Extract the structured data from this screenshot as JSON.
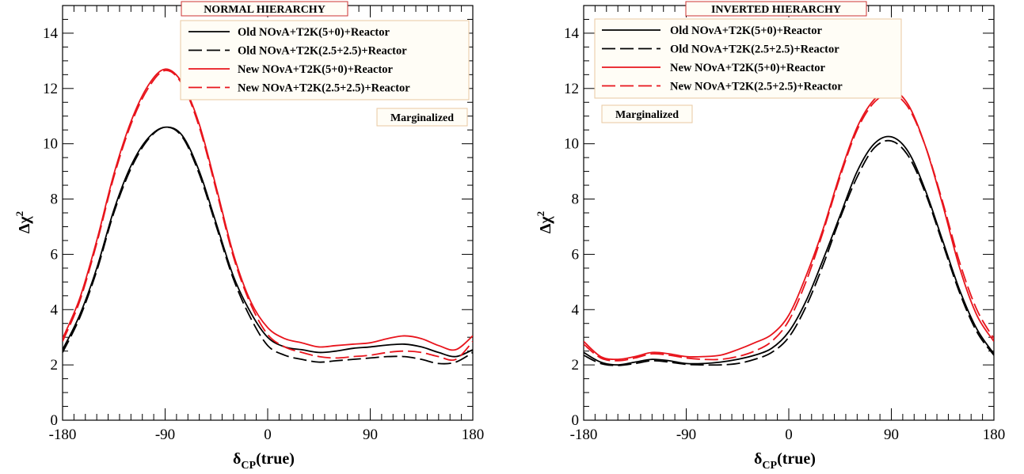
{
  "colors": {
    "old": "#000000",
    "new": "#e8141c",
    "legend_border": "#e8c8a0",
    "title_border": "#cc3333",
    "badge_bg": "#fffdf6"
  },
  "chart_data": [
    {
      "type": "line",
      "title": "NORMAL HIERARCHY",
      "xlabel": "δCP(true)",
      "ylabel": "Δχ2",
      "xlim": [
        -180,
        180
      ],
      "ylim": [
        0,
        15
      ],
      "xticks": [
        "-180",
        "-90",
        "0",
        "90",
        "180"
      ],
      "yticks": [
        "0",
        "2",
        "4",
        "6",
        "8",
        "10",
        "12",
        "14"
      ],
      "annotation": "Marginalized",
      "legend_position": "top-right",
      "x": [
        -180,
        -165,
        -150,
        -135,
        -120,
        -105,
        -90,
        -75,
        -60,
        -45,
        -30,
        -15,
        0,
        15,
        30,
        45,
        60,
        75,
        90,
        105,
        120,
        135,
        150,
        165,
        180
      ],
      "series": [
        {
          "name": "Old NOνA+T2K(5+0)+Reactor",
          "style": "solid",
          "color_key": "old",
          "values": [
            2.55,
            3.8,
            5.5,
            7.6,
            9.2,
            10.2,
            10.6,
            10.3,
            9.0,
            7.1,
            5.2,
            3.9,
            3.0,
            2.65,
            2.55,
            2.45,
            2.5,
            2.6,
            2.65,
            2.72,
            2.75,
            2.65,
            2.45,
            2.3,
            2.55
          ]
        },
        {
          "name": "Old NOνA+T2K(2.5+2.5)+Reactor",
          "style": "dashed",
          "color_key": "old",
          "values": [
            2.45,
            3.7,
            5.4,
            7.5,
            9.1,
            10.15,
            10.6,
            10.25,
            8.9,
            7.0,
            5.1,
            3.7,
            2.7,
            2.35,
            2.2,
            2.1,
            2.15,
            2.2,
            2.25,
            2.3,
            2.3,
            2.2,
            2.05,
            2.1,
            2.45
          ]
        },
        {
          "name": "New NOνA+T2K(5+0)+Reactor",
          "style": "solid",
          "color_key": "new",
          "values": [
            2.95,
            4.4,
            6.5,
            8.9,
            10.8,
            12.1,
            12.7,
            12.2,
            10.7,
            8.4,
            6.0,
            4.3,
            3.35,
            2.95,
            2.8,
            2.65,
            2.7,
            2.75,
            2.8,
            2.95,
            3.05,
            2.95,
            2.7,
            2.55,
            3.05
          ]
        },
        {
          "name": "New NOνA+T2K(2.5+2.5)+Reactor",
          "style": "dashed",
          "color_key": "new",
          "values": [
            2.85,
            4.3,
            6.4,
            8.8,
            10.7,
            12.0,
            12.65,
            12.15,
            10.6,
            8.3,
            5.9,
            4.2,
            3.1,
            2.65,
            2.45,
            2.3,
            2.25,
            2.3,
            2.35,
            2.45,
            2.5,
            2.45,
            2.3,
            2.2,
            2.85
          ]
        }
      ]
    },
    {
      "type": "line",
      "title": "INVERTED HIERARCHY",
      "xlabel": "δCP(true)",
      "ylabel": "Δχ2",
      "xlim": [
        -180,
        180
      ],
      "ylim": [
        0,
        15
      ],
      "xticks": [
        "-180",
        "-90",
        "0",
        "90",
        "180"
      ],
      "yticks": [
        "0",
        "2",
        "4",
        "6",
        "8",
        "10",
        "12",
        "14"
      ],
      "annotation": "Marginalized",
      "legend_position": "top",
      "x": [
        -180,
        -165,
        -150,
        -135,
        -120,
        -105,
        -90,
        -75,
        -60,
        -45,
        -30,
        -15,
        0,
        15,
        30,
        45,
        60,
        75,
        90,
        105,
        120,
        135,
        150,
        165,
        180
      ],
      "series": [
        {
          "name": "Old NOνA+T2K(5+0)+Reactor",
          "style": "solid",
          "color_key": "old",
          "values": [
            2.45,
            2.1,
            2.0,
            2.1,
            2.2,
            2.15,
            2.05,
            2.05,
            2.1,
            2.2,
            2.35,
            2.6,
            3.2,
            4.3,
            5.8,
            7.4,
            9.0,
            10.0,
            10.25,
            9.7,
            8.3,
            6.5,
            4.7,
            3.3,
            2.4
          ]
        },
        {
          "name": "Old NOνA+T2K(2.5+2.5)+Reactor",
          "style": "dashed",
          "color_key": "old",
          "values": [
            2.35,
            2.05,
            1.98,
            2.05,
            2.15,
            2.1,
            2.02,
            2.0,
            2.0,
            2.05,
            2.2,
            2.45,
            3.0,
            4.1,
            5.6,
            7.3,
            8.8,
            9.85,
            10.1,
            9.55,
            8.2,
            6.4,
            4.6,
            3.2,
            2.35
          ]
        },
        {
          "name": "New NOνA+T2K(5+0)+Reactor",
          "style": "solid",
          "color_key": "new",
          "values": [
            2.85,
            2.3,
            2.2,
            2.3,
            2.45,
            2.4,
            2.3,
            2.3,
            2.35,
            2.55,
            2.8,
            3.1,
            3.8,
            5.2,
            6.9,
            8.9,
            10.6,
            11.6,
            11.95,
            11.4,
            9.9,
            7.8,
            5.5,
            3.8,
            2.85
          ]
        },
        {
          "name": "New NOνA+T2K(2.5+2.5)+Reactor",
          "style": "dashed",
          "color_key": "new",
          "values": [
            2.75,
            2.25,
            2.15,
            2.25,
            2.4,
            2.35,
            2.25,
            2.2,
            2.2,
            2.3,
            2.5,
            2.85,
            3.6,
            5.0,
            6.8,
            8.8,
            10.5,
            11.5,
            11.8,
            11.3,
            9.9,
            7.9,
            5.7,
            4.0,
            2.95
          ]
        }
      ]
    }
  ]
}
